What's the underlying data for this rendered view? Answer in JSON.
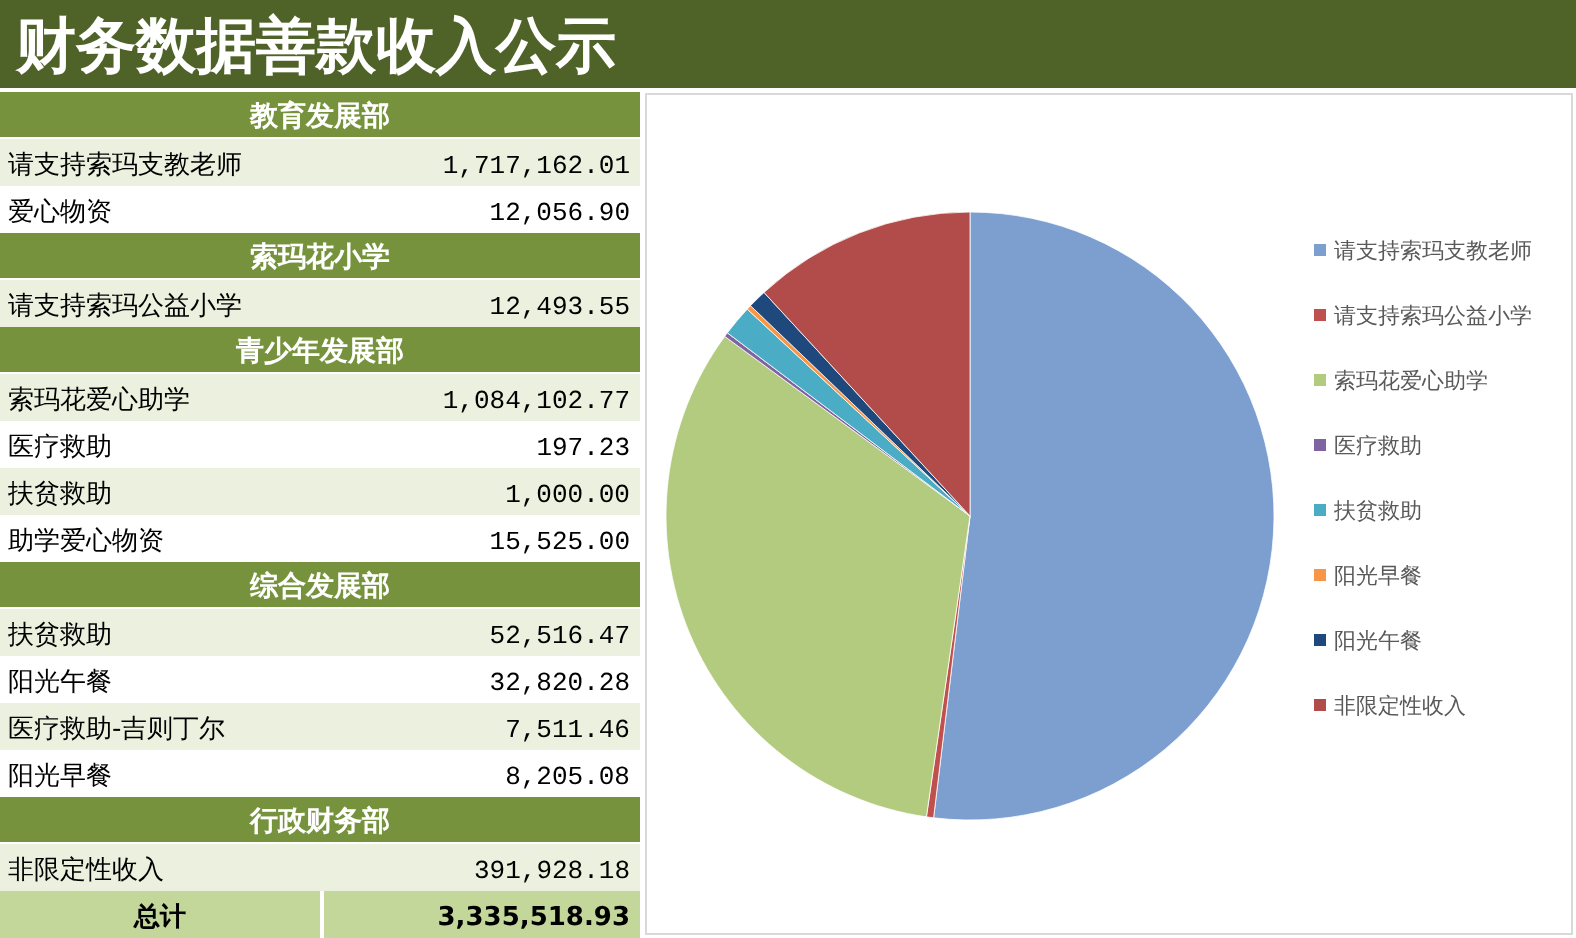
{
  "chart_data": [
    {
      "type": "other",
      "title": "财务数据善款收入公示",
      "categories": [
        "教育发展部",
        "请支持索玛支教老师",
        "爱心物资",
        "索玛花小学",
        "请支持索玛公益小学",
        "青少年发展部",
        "索玛花爱心助学",
        "医疗救助",
        "扶贫救助",
        "助学爱心物资",
        "综合发展部",
        "扶贫救助",
        "阳光午餐",
        "医疗救助-吉则丁尔",
        "阳光早餐",
        "行政财务部",
        "非限定性收入",
        "总计"
      ],
      "values": [
        null,
        1717162.01,
        12056.9,
        null,
        12493.55,
        null,
        1084102.77,
        197.23,
        1000.0,
        15525.0,
        null,
        52516.47,
        32820.28,
        7511.46,
        8205.08,
        null,
        391928.18,
        3335518.93
      ],
      "value_labels": [
        null,
        "1,717,162.01",
        "12,056.90",
        null,
        "12,493.55",
        null,
        "1,084,102.77",
        "197.23",
        "1,000.00",
        "15,525.00",
        null,
        "52,516.47",
        "32,820.28",
        "7,511.46",
        "8,205.08",
        null,
        "391,928.18",
        "3,335,518.93"
      ]
    },
    {
      "type": "pie",
      "categories": [
        "请支持索玛支教老师",
        "请支持索玛公益小学",
        "索玛花爱心助学",
        "医疗救助",
        "扶贫救助",
        "阳光早餐",
        "阳光午餐",
        "非限定性收入"
      ],
      "values": [
        51.91,
        0.38,
        32.77,
        0.23,
        1.62,
        0.25,
        0.99,
        11.85
      ],
      "colors": [
        "#7c9fd0",
        "#c0504d",
        "#b3cb7e",
        "#8064a2",
        "#4bacc6",
        "#f79646",
        "#1f497d",
        "#b24c4a"
      ],
      "legend": "right"
    }
  ]
}
